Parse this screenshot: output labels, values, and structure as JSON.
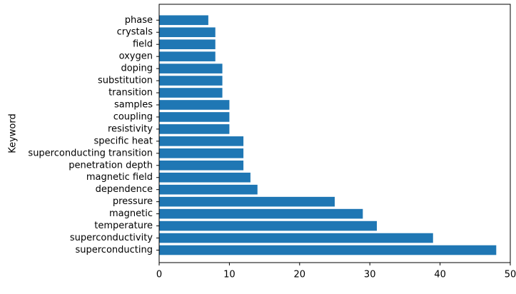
{
  "chart_data": {
    "type": "bar",
    "orientation": "horizontal",
    "title": "",
    "xlabel": "",
    "ylabel": "Keyword",
    "categories": [
      "superconducting",
      "superconductivity",
      "temperature",
      "magnetic",
      "pressure",
      "dependence",
      "magnetic field",
      "penetration depth",
      "superconducting transition",
      "specific heat",
      "resistivity",
      "coupling",
      "samples",
      "transition",
      "substitution",
      "doping",
      "oxygen",
      "field",
      "crystals",
      "phase"
    ],
    "values": [
      48,
      39,
      31,
      29,
      25,
      14,
      13,
      12,
      12,
      12,
      10,
      10,
      10,
      9,
      9,
      9,
      8,
      8,
      8,
      7
    ],
    "xlim": [
      0,
      50
    ],
    "xticks": [
      0,
      10,
      20,
      30,
      40,
      50
    ],
    "bar_color": "#1f77b4",
    "grid": false,
    "legend": "none"
  }
}
